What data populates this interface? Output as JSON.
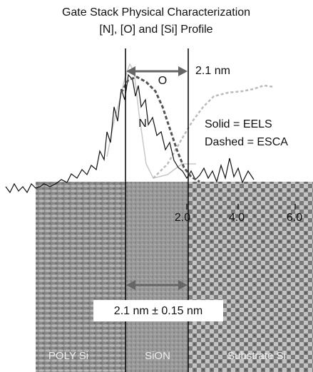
{
  "title": {
    "line1": "Gate Stack Physical Characterization",
    "line2": "[N], [O] and [Si] Profile"
  },
  "annotations": {
    "o_label": "O",
    "n_label": "N",
    "width_top": "2.1 nm",
    "legend_solid": "Solid = EELS",
    "legend_dashed": "Dashed = ESCA",
    "width_bottom": "2.1 nm ± 0.15 nm"
  },
  "axis_ticks": [
    "2.0",
    "4.0",
    "6.0"
  ],
  "regions": [
    "POLY Si",
    "SiON",
    "Substrate Si"
  ]
}
